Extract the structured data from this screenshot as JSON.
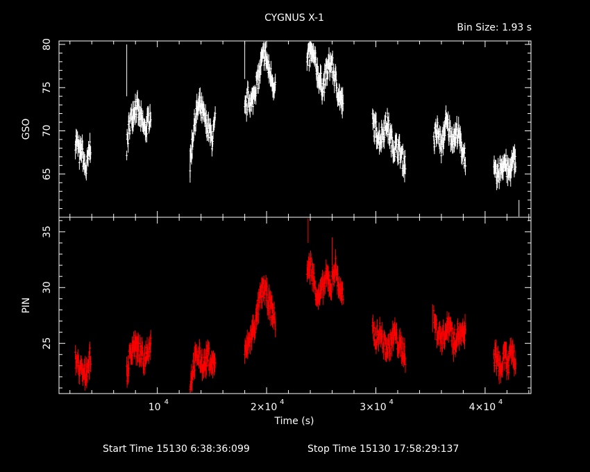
{
  "chart_data": {
    "type": "scatter",
    "title": "CYGNUS X-1",
    "bin_size_label": "Bin Size: 1.93 s",
    "xlabel": "Time (s)",
    "xlim": [
      1000,
      44200
    ],
    "x_ticks": [
      {
        "value": 10000,
        "mantissa": "",
        "exp": "4"
      },
      {
        "value": 20000,
        "mantissa": "2×",
        "exp": "4"
      },
      {
        "value": 30000,
        "mantissa": "3×",
        "exp": "4"
      },
      {
        "value": 40000,
        "mantissa": "4×",
        "exp": "4"
      }
    ],
    "footer": {
      "start_label": "Start Time 15130  6:38:36:099",
      "stop_label": "Stop Time 15130 17:58:29:137"
    },
    "panels": [
      {
        "name": "GSO",
        "ylabel": "GSO",
        "color": "#ffffff",
        "ylim": [
          60,
          80.4
        ],
        "y_ticks": [
          65,
          70,
          75,
          80
        ],
        "y_minor_step": 1,
        "segments": [
          {
            "x_start": 2500,
            "x_end": 3900,
            "levels": [
              69,
              68.5,
              67,
              68,
              66,
              65.5,
              67,
              68.5
            ]
          },
          {
            "x_start": 7200,
            "x_end": 9400,
            "levels": [
              68,
              71,
              72,
              73,
              72,
              71,
              70,
              71,
              72
            ]
          },
          {
            "x_start": 13000,
            "x_end": 15300,
            "levels": [
              66,
              70,
              72,
              73,
              72,
              71,
              70,
              69,
              71
            ]
          },
          {
            "x_start": 18000,
            "x_end": 20800,
            "levels": [
              72,
              74,
              73,
              75,
              76,
              78,
              79,
              77,
              76,
              75
            ]
          },
          {
            "x_start": 23700,
            "x_end": 27000,
            "levels": [
              78,
              79,
              78,
              76,
              75,
              77,
              78,
              76,
              74,
              73
            ]
          },
          {
            "x_start": 29700,
            "x_end": 32700,
            "levels": [
              71,
              70,
              69,
              70,
              71,
              69,
              68,
              68,
              67,
              66
            ]
          },
          {
            "x_start": 35300,
            "x_end": 38200,
            "levels": [
              69,
              70,
              68,
              71,
              70,
              69,
              70,
              68,
              67
            ]
          },
          {
            "x_start": 40800,
            "x_end": 42800,
            "levels": [
              65,
              64.5,
              66,
              66.5,
              65,
              66,
              67
            ]
          }
        ],
        "spikes": [
          {
            "x": 7200,
            "lo": 74,
            "hi": 80
          },
          {
            "x": 13000,
            "lo": 64,
            "hi": 68
          },
          {
            "x": 18000,
            "lo": 76,
            "hi": 80.4
          },
          {
            "x": 43100,
            "lo": 60,
            "hi": 62
          }
        ]
      },
      {
        "name": "PIN",
        "ylabel": "PIN",
        "color": "#ff0000",
        "ylim": [
          20.5,
          36.3
        ],
        "y_ticks": [
          25,
          30,
          35
        ],
        "y_minor_step": 1,
        "segments": [
          {
            "x_start": 2500,
            "x_end": 3900,
            "levels": [
              23.5,
              23,
              22.5,
              22,
              23,
              24
            ]
          },
          {
            "x_start": 7200,
            "x_end": 9400,
            "levels": [
              22,
              24,
              25,
              24.5,
              24,
              23.5,
              24.5,
              25
            ]
          },
          {
            "x_start": 13000,
            "x_end": 15300,
            "levels": [
              21.5,
              23,
              24,
              23.5,
              23,
              24,
              23,
              23.5
            ]
          },
          {
            "x_start": 18000,
            "x_end": 20800,
            "levels": [
              24,
              25,
              26,
              27,
              29,
              30,
              29,
              28,
              27
            ]
          },
          {
            "x_start": 23700,
            "x_end": 27000,
            "levels": [
              31.5,
              32,
              30,
              29,
              30,
              31,
              30,
              32,
              30,
              29
            ]
          },
          {
            "x_start": 29700,
            "x_end": 32700,
            "levels": [
              26,
              25.5,
              26,
              25,
              24.5,
              25,
              26,
              25,
              24.5,
              24
            ]
          },
          {
            "x_start": 35300,
            "x_end": 38200,
            "levels": [
              27,
              26,
              25.5,
              26,
              27,
              25,
              26,
              25.5,
              26
            ]
          },
          {
            "x_start": 40800,
            "x_end": 42800,
            "levels": [
              24,
              23.5,
              22.5,
              24,
              23,
              24.5,
              23
            ]
          }
        ],
        "spikes": [
          {
            "x": 23800,
            "lo": 34,
            "hi": 36.2
          },
          {
            "x": 35200,
            "lo": 26,
            "hi": 28.5
          },
          {
            "x": 26000,
            "lo": 32,
            "hi": 34.5
          }
        ]
      }
    ]
  }
}
